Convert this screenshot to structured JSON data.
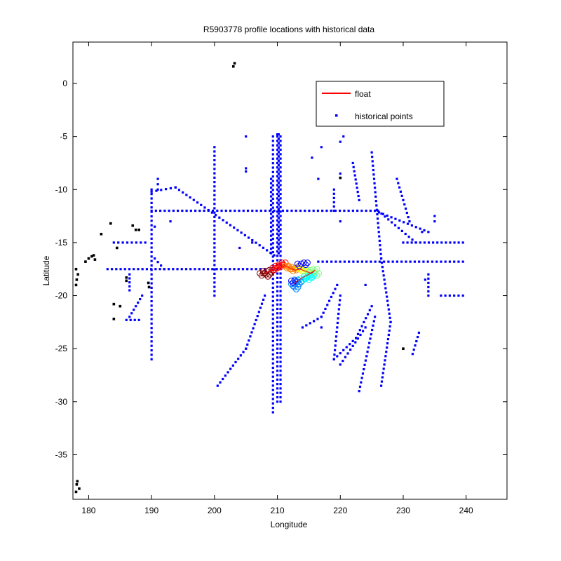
{
  "chart_data": {
    "type": "scatter",
    "title": "R5903778 profile locations with historical data",
    "xlabel": "Longitude",
    "ylabel": "Latitude",
    "xlim": [
      177.5,
      246.5
    ],
    "ylim": [
      -39.2,
      3.9
    ],
    "xticks": [
      180,
      190,
      200,
      210,
      220,
      230,
      240
    ],
    "yticks": [
      0,
      -5,
      -10,
      -15,
      -20,
      -25,
      -30,
      -35
    ],
    "grid": false,
    "legend": {
      "placement": "top-right",
      "entries": [
        {
          "label": "float",
          "marker": "line",
          "color": "#ff0000"
        },
        {
          "label": "historical points",
          "marker": "dot",
          "color": "#0000ff"
        }
      ]
    },
    "series": [
      {
        "name": "float",
        "color": "#ff0000",
        "points": [
          [
            208.0,
            -17.9
          ],
          [
            208.8,
            -17.7
          ],
          [
            209.6,
            -17.5
          ],
          [
            210.4,
            -17.3
          ],
          [
            211.2,
            -17.2
          ],
          [
            212.0,
            -17.4
          ],
          [
            212.8,
            -17.6
          ],
          [
            213.6,
            -17.5
          ],
          [
            214.5,
            -17.7
          ],
          [
            215.4,
            -17.9
          ],
          [
            216.0,
            -17.6
          ],
          [
            215.0,
            -18.0
          ],
          [
            214.0,
            -18.3
          ],
          [
            213.2,
            -18.6
          ],
          [
            212.6,
            -18.9
          ]
        ]
      },
      {
        "name": "historical points",
        "color": "#0000ff",
        "segments": [
          [
            [
              190.0,
              -10.2
            ],
            [
              193.8,
              -9.8
            ],
            [
              209.5,
              -16.2
            ]
          ],
          [
            [
              190.0,
              -12.0
            ],
            [
              225.5,
              -12.0
            ],
            [
              234.0,
              -14.0
            ]
          ],
          [
            [
              183.0,
              -17.5
            ],
            [
              208.0,
              -17.5
            ]
          ],
          [
            [
              216.5,
              -16.8
            ],
            [
              239.5,
              -16.8
            ]
          ],
          [
            [
              209.3,
              -5.0
            ],
            [
              209.3,
              -31.0
            ]
          ],
          [
            [
              210.0,
              -5.0
            ],
            [
              210.0,
              -30.0
            ]
          ],
          [
            [
              210.5,
              -5.0
            ],
            [
              210.5,
              -30.0
            ]
          ],
          [
            [
              210.2,
              -4.8
            ],
            [
              210.2,
              -16.0
            ]
          ],
          [
            [
              209.0,
              -9.0
            ],
            [
              209.0,
              -16.0
            ]
          ],
          [
            [
              190.0,
              -10.0
            ],
            [
              190.0,
              -26.0
            ]
          ],
          [
            [
              200.0,
              -6.0
            ],
            [
              200.0,
              -20.0
            ]
          ],
          [
            [
              225.0,
              -6.5
            ],
            [
              226.5,
              -16.5
            ],
            [
              228.0,
              -22.5
            ],
            [
              226.5,
              -28.5
            ]
          ],
          [
            [
              219.0,
              -10.0
            ],
            [
              219.0,
              -12.0
            ]
          ],
          [
            [
              222.0,
              -7.5
            ],
            [
              223.0,
              -11.0
            ]
          ],
          [
            [
              184.0,
              -15.0
            ],
            [
              189.0,
              -15.0
            ]
          ],
          [
            [
              226.0,
              -12.0
            ],
            [
              232.0,
              -15.0
            ]
          ],
          [
            [
              230.0,
              -15.0
            ],
            [
              239.5,
              -15.0
            ]
          ],
          [
            [
              236.0,
              -20.0
            ],
            [
              239.5,
              -20.0
            ]
          ],
          [
            [
              200.5,
              -28.5
            ],
            [
              205.0,
              -25.0
            ],
            [
              208.0,
              -20.0
            ]
          ],
          [
            [
              220.0,
              -20.0
            ],
            [
              219.0,
              -26.0
            ],
            [
              222.5,
              -24.0
            ],
            [
              225.0,
              -21.0
            ]
          ],
          [
            [
              214.0,
              -23.0
            ],
            [
              217.0,
              -22.0
            ],
            [
              219.5,
              -19.0
            ]
          ],
          [
            [
              220.0,
              -26.5
            ],
            [
              224.0,
              -23.0
            ]
          ],
          [
            [
              223.0,
              -29.0
            ],
            [
              225.5,
              -22.0
            ]
          ],
          [
            [
              186.5,
              -22.0
            ],
            [
              188.5,
              -20.0
            ]
          ],
          [
            [
              186.0,
              -22.3
            ],
            [
              188.0,
              -22.3
            ]
          ],
          [
            [
              186.5,
              -18.0
            ],
            [
              186.5,
              -19.5
            ]
          ],
          [
            [
              229.0,
              -9.0
            ],
            [
              231.0,
              -13.0
            ]
          ],
          [
            [
              234.0,
              -18.0
            ],
            [
              234.0,
              -20.0
            ]
          ],
          [
            [
              231.5,
              -25.5
            ],
            [
              232.5,
              -23.5
            ]
          ],
          [
            [
              190.5,
              -16.5
            ],
            [
              192.0,
              -17.5
            ]
          ],
          [
            [
              191.0,
              -10.0
            ],
            [
              191.0,
              -9.0
            ]
          ]
        ],
        "points": [
          [
            205.0,
            -5.0
          ],
          [
            205.0,
            -8.0
          ],
          [
            205.0,
            -8.3
          ],
          [
            220.5,
            -5.0
          ],
          [
            220.0,
            -5.5
          ],
          [
            216.5,
            -9.0
          ],
          [
            217.0,
            -6.0
          ],
          [
            215.5,
            -7.0
          ],
          [
            220.0,
            -8.5
          ],
          [
            224.0,
            -19.0
          ],
          [
            210.0,
            -4.8
          ],
          [
            217.0,
            -23.0
          ],
          [
            206.0,
            -15.0
          ],
          [
            190.5,
            -13.5
          ],
          [
            193.0,
            -13.0
          ],
          [
            204.0,
            -15.5
          ],
          [
            220.0,
            -13.0
          ],
          [
            235.0,
            -12.5
          ],
          [
            235.0,
            -13.0
          ],
          [
            233.0,
            -14.0
          ],
          [
            233.5,
            -18.5
          ]
        ]
      },
      {
        "name": "",
        "color": "#000000",
        "points": [
          [
            203.0,
            1.6
          ],
          [
            203.2,
            1.9
          ],
          [
            178.2,
            -37.5
          ],
          [
            178.0,
            -38.5
          ],
          [
            178.1,
            -37.8
          ],
          [
            178.5,
            -38.2
          ],
          [
            180.0,
            -16.5
          ],
          [
            180.5,
            -16.3
          ],
          [
            181.0,
            -16.6
          ],
          [
            179.5,
            -16.8
          ],
          [
            180.8,
            -16.2
          ],
          [
            178.0,
            -17.5
          ],
          [
            178.3,
            -18.0
          ],
          [
            178.1,
            -18.5
          ],
          [
            178.0,
            -19.0
          ],
          [
            182.0,
            -14.2
          ],
          [
            183.5,
            -13.2
          ],
          [
            187.0,
            -13.4
          ],
          [
            187.5,
            -13.8
          ],
          [
            188.0,
            -13.8
          ],
          [
            184.5,
            -15.5
          ],
          [
            186.0,
            -18.3
          ],
          [
            186.0,
            -18.6
          ],
          [
            184.0,
            -20.8
          ],
          [
            185.0,
            -21.0
          ],
          [
            184.0,
            -22.2
          ],
          [
            189.5,
            -18.8
          ],
          [
            189.6,
            -19.2
          ],
          [
            220.0,
            -8.9
          ],
          [
            230.0,
            -25.0
          ]
        ]
      },
      {
        "name": "",
        "colorscale": [
          "#800000",
          "#ff0000",
          "#ff8000",
          "#ffff00",
          "#80ff80",
          "#00ffff",
          "#0080ff",
          "#0000ff"
        ],
        "points": [
          [
            207.5,
            -18.0
          ],
          [
            208.0,
            -17.8
          ],
          [
            208.5,
            -18.1
          ],
          [
            209.0,
            -17.7
          ],
          [
            209.5,
            -17.5
          ],
          [
            210.0,
            -17.3
          ],
          [
            210.5,
            -17.2
          ],
          [
            211.0,
            -17.0
          ],
          [
            211.5,
            -17.3
          ],
          [
            212.0,
            -17.4
          ],
          [
            212.5,
            -17.6
          ],
          [
            213.0,
            -17.5
          ],
          [
            213.5,
            -17.4
          ],
          [
            214.0,
            -17.6
          ],
          [
            214.5,
            -17.8
          ],
          [
            215.0,
            -17.7
          ],
          [
            215.5,
            -17.9
          ],
          [
            216.0,
            -17.6
          ],
          [
            216.3,
            -18.0
          ],
          [
            215.5,
            -18.2
          ],
          [
            215.0,
            -18.4
          ],
          [
            214.5,
            -18.3
          ],
          [
            214.0,
            -18.5
          ],
          [
            213.5,
            -18.8
          ],
          [
            213.0,
            -18.6
          ],
          [
            212.5,
            -19.0
          ],
          [
            213.0,
            -19.3
          ],
          [
            212.5,
            -18.7
          ],
          [
            213.5,
            -17.1
          ],
          [
            214.5,
            -17.0
          ]
        ]
      }
    ]
  }
}
